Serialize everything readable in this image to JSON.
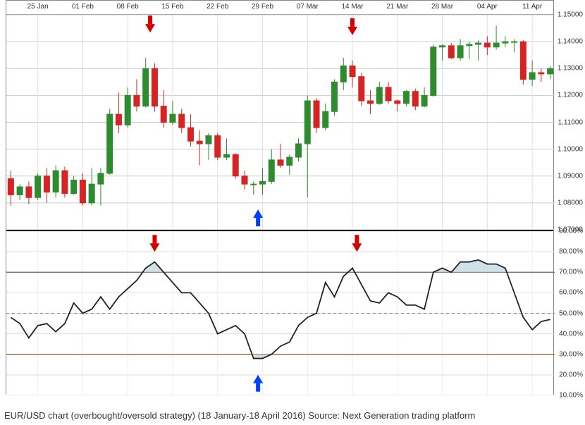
{
  "caption": "EUR/USD chart (overbought/oversold strategy) (18 January-18 April 2016) Source: Next Generation trading platform",
  "dates": [
    "25 Jan",
    "01 Feb",
    "08 Feb",
    "15 Feb",
    "22 Feb",
    "29 Feb",
    "07 Mar",
    "14 Mar",
    "21 Mar",
    "28 Mar",
    "04 Apr",
    "11 Apr"
  ],
  "price": {
    "ylim": [
      1.07,
      1.15
    ],
    "ylabels": [
      "1.15000",
      "1.14000",
      "1.13000",
      "1.12000",
      "1.11000",
      "1.10000",
      "1.09000",
      "1.08000",
      "1.07000"
    ],
    "grid_color": "#cccccc",
    "up_color": "#2e8b2e",
    "down_color": "#d62424",
    "candles": [
      {
        "o": 1.089,
        "h": 1.092,
        "l": 1.079,
        "c": 1.083,
        "up": false
      },
      {
        "o": 1.083,
        "h": 1.087,
        "l": 1.081,
        "c": 1.086,
        "up": true
      },
      {
        "o": 1.086,
        "h": 1.088,
        "l": 1.0795,
        "c": 1.082,
        "up": false
      },
      {
        "o": 1.082,
        "h": 1.091,
        "l": 1.081,
        "c": 1.09,
        "up": true
      },
      {
        "o": 1.09,
        "h": 1.093,
        "l": 1.08,
        "c": 1.084,
        "up": false
      },
      {
        "o": 1.084,
        "h": 1.094,
        "l": 1.082,
        "c": 1.092,
        "up": true
      },
      {
        "o": 1.092,
        "h": 1.0935,
        "l": 1.082,
        "c": 1.0835,
        "up": false
      },
      {
        "o": 1.0835,
        "h": 1.09,
        "l": 1.083,
        "c": 1.0885,
        "up": true
      },
      {
        "o": 1.0885,
        "h": 1.091,
        "l": 1.079,
        "c": 1.08,
        "up": false
      },
      {
        "o": 1.08,
        "h": 1.093,
        "l": 1.079,
        "c": 1.087,
        "up": true
      },
      {
        "o": 1.087,
        "h": 1.093,
        "l": 1.079,
        "c": 1.091,
        "up": true
      },
      {
        "o": 1.091,
        "h": 1.115,
        "l": 1.0905,
        "c": 1.113,
        "up": true
      },
      {
        "o": 1.113,
        "h": 1.121,
        "l": 1.106,
        "c": 1.109,
        "up": false
      },
      {
        "o": 1.109,
        "h": 1.123,
        "l": 1.108,
        "c": 1.12,
        "up": true
      },
      {
        "o": 1.12,
        "h": 1.126,
        "l": 1.114,
        "c": 1.116,
        "up": false
      },
      {
        "o": 1.116,
        "h": 1.134,
        "l": 1.1155,
        "c": 1.13,
        "up": true
      },
      {
        "o": 1.13,
        "h": 1.132,
        "l": 1.114,
        "c": 1.116,
        "up": false
      },
      {
        "o": 1.116,
        "h": 1.122,
        "l": 1.108,
        "c": 1.11,
        "up": false
      },
      {
        "o": 1.11,
        "h": 1.118,
        "l": 1.109,
        "c": 1.113,
        "up": true
      },
      {
        "o": 1.113,
        "h": 1.115,
        "l": 1.106,
        "c": 1.108,
        "up": false
      },
      {
        "o": 1.108,
        "h": 1.113,
        "l": 1.101,
        "c": 1.103,
        "up": false
      },
      {
        "o": 1.103,
        "h": 1.107,
        "l": 1.094,
        "c": 1.102,
        "up": false
      },
      {
        "o": 1.102,
        "h": 1.106,
        "l": 1.096,
        "c": 1.105,
        "up": true
      },
      {
        "o": 1.105,
        "h": 1.106,
        "l": 1.096,
        "c": 1.097,
        "up": false
      },
      {
        "o": 1.097,
        "h": 1.104,
        "l": 1.096,
        "c": 1.098,
        "up": true
      },
      {
        "o": 1.098,
        "h": 1.0985,
        "l": 1.089,
        "c": 1.09,
        "up": false
      },
      {
        "o": 1.09,
        "h": 1.092,
        "l": 1.085,
        "c": 1.087,
        "up": false
      },
      {
        "o": 1.087,
        "h": 1.088,
        "l": 1.083,
        "c": 1.087,
        "up": true
      },
      {
        "o": 1.087,
        "h": 1.093,
        "l": 1.083,
        "c": 1.088,
        "up": true
      },
      {
        "o": 1.088,
        "h": 1.1,
        "l": 1.087,
        "c": 1.096,
        "up": true
      },
      {
        "o": 1.096,
        "h": 1.102,
        "l": 1.093,
        "c": 1.094,
        "up": false
      },
      {
        "o": 1.094,
        "h": 1.098,
        "l": 1.0905,
        "c": 1.097,
        "up": true
      },
      {
        "o": 1.097,
        "h": 1.104,
        "l": 1.0955,
        "c": 1.102,
        "up": true
      },
      {
        "o": 1.102,
        "h": 1.12,
        "l": 1.082,
        "c": 1.118,
        "up": true
      },
      {
        "o": 1.118,
        "h": 1.119,
        "l": 1.106,
        "c": 1.108,
        "up": false
      },
      {
        "o": 1.108,
        "h": 1.117,
        "l": 1.107,
        "c": 1.114,
        "up": true
      },
      {
        "o": 1.114,
        "h": 1.126,
        "l": 1.1125,
        "c": 1.125,
        "up": true
      },
      {
        "o": 1.125,
        "h": 1.134,
        "l": 1.122,
        "c": 1.131,
        "up": true
      },
      {
        "o": 1.131,
        "h": 1.133,
        "l": 1.123,
        "c": 1.127,
        "up": false
      },
      {
        "o": 1.127,
        "h": 1.1285,
        "l": 1.116,
        "c": 1.118,
        "up": false
      },
      {
        "o": 1.118,
        "h": 1.122,
        "l": 1.113,
        "c": 1.117,
        "up": false
      },
      {
        "o": 1.117,
        "h": 1.125,
        "l": 1.1165,
        "c": 1.123,
        "up": true
      },
      {
        "o": 1.123,
        "h": 1.125,
        "l": 1.117,
        "c": 1.118,
        "up": false
      },
      {
        "o": 1.118,
        "h": 1.1185,
        "l": 1.114,
        "c": 1.117,
        "up": false
      },
      {
        "o": 1.117,
        "h": 1.122,
        "l": 1.116,
        "c": 1.1215,
        "up": true
      },
      {
        "o": 1.1215,
        "h": 1.1225,
        "l": 1.1145,
        "c": 1.116,
        "up": false
      },
      {
        "o": 1.116,
        "h": 1.123,
        "l": 1.1155,
        "c": 1.12,
        "up": true
      },
      {
        "o": 1.12,
        "h": 1.139,
        "l": 1.1195,
        "c": 1.138,
        "up": true
      },
      {
        "o": 1.138,
        "h": 1.139,
        "l": 1.133,
        "c": 1.1385,
        "up": true
      },
      {
        "o": 1.1385,
        "h": 1.1395,
        "l": 1.1335,
        "c": 1.134,
        "up": false
      },
      {
        "o": 1.134,
        "h": 1.141,
        "l": 1.133,
        "c": 1.1385,
        "up": true
      },
      {
        "o": 1.1385,
        "h": 1.14,
        "l": 1.1335,
        "c": 1.139,
        "up": true
      },
      {
        "o": 1.139,
        "h": 1.1405,
        "l": 1.133,
        "c": 1.1395,
        "up": true
      },
      {
        "o": 1.1395,
        "h": 1.142,
        "l": 1.135,
        "c": 1.138,
        "up": false
      },
      {
        "o": 1.138,
        "h": 1.146,
        "l": 1.137,
        "c": 1.1395,
        "up": true
      },
      {
        "o": 1.1395,
        "h": 1.142,
        "l": 1.138,
        "c": 1.14,
        "up": true
      },
      {
        "o": 1.14,
        "h": 1.141,
        "l": 1.136,
        "c": 1.14,
        "up": true
      },
      {
        "o": 1.14,
        "h": 1.1405,
        "l": 1.124,
        "c": 1.126,
        "up": false
      },
      {
        "o": 1.126,
        "h": 1.133,
        "l": 1.1235,
        "c": 1.1285,
        "up": true
      },
      {
        "o": 1.1285,
        "h": 1.13,
        "l": 1.125,
        "c": 1.128,
        "up": false
      },
      {
        "o": 1.128,
        "h": 1.131,
        "l": 1.126,
        "c": 1.13,
        "up": true
      }
    ],
    "arrows": [
      {
        "x_idx": 15.5,
        "y": 1.145,
        "dir": "down",
        "color": "#d40000"
      },
      {
        "x_idx": 27.5,
        "y": 1.076,
        "dir": "up",
        "color": "#0040ff"
      },
      {
        "x_idx": 38.0,
        "y": 1.144,
        "dir": "down",
        "color": "#d40000"
      }
    ]
  },
  "rsi": {
    "ylim": [
      10,
      90
    ],
    "ylabels": [
      "90.00%",
      "80.00%",
      "70.00%",
      "60.00%",
      "50.00%",
      "40.00%",
      "30.00%",
      "20.00%",
      "10.00%"
    ],
    "line_color": "#222222",
    "upper": 70,
    "lower": 30,
    "mid": 50,
    "band_color": "#8b5a3a",
    "overfill": "#bcd6e0",
    "values": [
      48,
      45,
      38,
      44,
      45,
      41,
      45,
      55,
      50,
      52,
      58,
      52,
      58,
      62,
      66,
      72,
      75,
      70,
      65,
      60,
      60,
      55,
      50,
      40,
      42,
      44,
      40,
      28,
      28,
      30,
      34,
      36,
      44,
      48,
      50,
      65,
      58,
      68,
      72,
      64,
      56,
      55,
      60,
      58,
      54,
      54,
      52,
      70,
      72,
      70,
      75,
      75,
      76,
      74,
      74,
      72,
      60,
      48,
      42,
      46,
      47
    ],
    "arrows": [
      {
        "x_idx": 16,
        "y": 82,
        "dir": "down",
        "color": "#d40000"
      },
      {
        "x_idx": 27.5,
        "y": 18,
        "dir": "up",
        "color": "#0040ff"
      },
      {
        "x_idx": 38.5,
        "y": 82,
        "dir": "down",
        "color": "#d40000"
      }
    ]
  },
  "style": {
    "candle_width": 8,
    "font_size_axis": 10
  }
}
